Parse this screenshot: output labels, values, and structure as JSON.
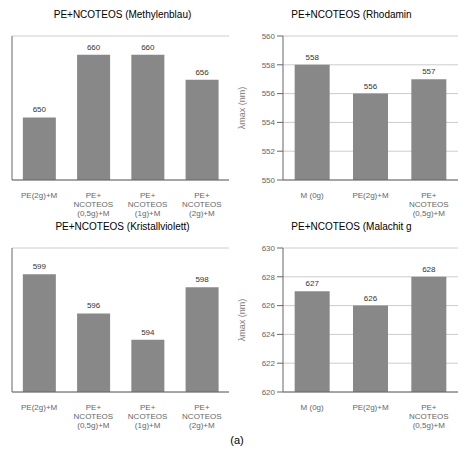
{
  "chart_data": [
    {
      "type": "bar",
      "title": "PE+NCOTEOS (Methylenblau)",
      "categories": [
        "PE(2g)+M",
        "PE+\nNCOTEOS\n(0,5g)+M",
        "PE+\nNCOTEOS\n(1g)+M",
        "PE+\nNCOTEOS\n(2g)+M"
      ],
      "values": [
        650,
        660,
        660,
        656
      ],
      "color": "#888888",
      "ylim": [
        640,
        663
      ],
      "yticks": [
        640,
        642,
        644,
        646,
        648,
        650,
        652,
        654,
        656,
        658,
        660,
        662
      ],
      "grid": true,
      "data_labels": true,
      "tick_labels": "x"
    },
    {
      "type": "bar",
      "title": "PE+NCOTEOS (Rhodamin",
      "categories": [
        "M (0g)",
        "PE(2g)+M",
        "PE+\nNCOTEOS\n(0,5g)+M"
      ],
      "values": [
        558,
        556,
        557
      ],
      "color": "#888888",
      "ylim": [
        550,
        560
      ],
      "yticks": [
        550,
        552,
        554,
        556,
        558,
        560
      ],
      "ylabel": "λmax (nm)",
      "grid": true,
      "data_labels": true
    },
    {
      "type": "bar",
      "title": "PE+NCOTEOS (Kristallviolett)",
      "categories": [
        "PE(2g)+M",
        "PE+\nNCOTEOS\n(0,5g)+M",
        "PE+\nNCOTEOS\n(1g)+M",
        "PE+\nNCOTEOS\n(2g)+M"
      ],
      "values": [
        599,
        596,
        594,
        598
      ],
      "color": "#888888",
      "ylim": [
        590,
        601
      ],
      "yticks": [
        590,
        591,
        592,
        593,
        594,
        595,
        596,
        597,
        598,
        599,
        600,
        601
      ],
      "grid": true,
      "data_labels": true,
      "tick_labels": "x"
    },
    {
      "type": "bar",
      "title": "PE+NCOTEOS (Malachit g",
      "categories": [
        "M (0g)",
        "PE(2g)+M",
        "PE+\nNCOTEOS\n(0,5g)+M"
      ],
      "values": [
        627,
        626,
        628
      ],
      "color": "#888888",
      "ylim": [
        620,
        630
      ],
      "yticks": [
        620,
        622,
        624,
        626,
        628,
        630
      ],
      "ylabel": "λmax (nm)",
      "grid": true,
      "data_labels": true
    }
  ],
  "annotation": "(a)"
}
